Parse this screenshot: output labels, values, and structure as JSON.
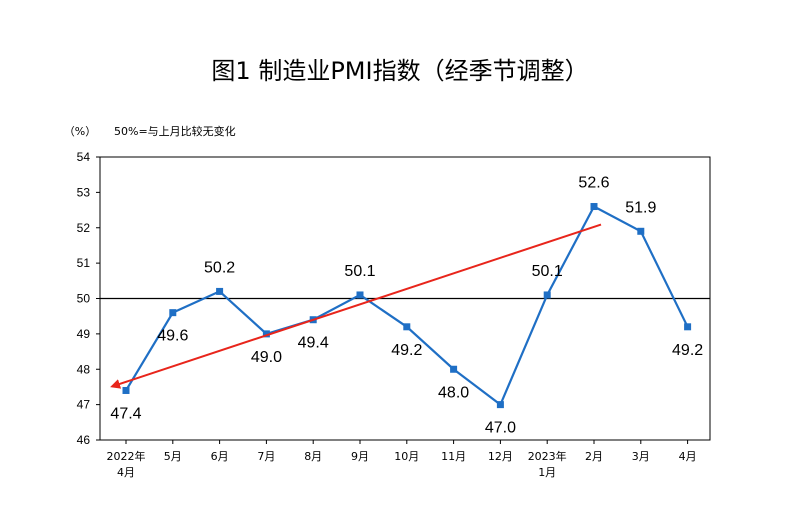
{
  "chart_data": {
    "type": "line",
    "title": "图1  制造业PMI指数（经季节调整）",
    "unit_label": "（%）",
    "note": "50%=与上月比较无变化",
    "categories": [
      [
        "2022年",
        "4月"
      ],
      [
        "5月"
      ],
      [
        "6月"
      ],
      [
        "7月"
      ],
      [
        "8月"
      ],
      [
        "9月"
      ],
      [
        "10月"
      ],
      [
        "11月"
      ],
      [
        "12月"
      ],
      [
        "2023年",
        "1月"
      ],
      [
        "2月"
      ],
      [
        "3月"
      ],
      [
        "4月"
      ]
    ],
    "series": [
      {
        "values": [
          47.4,
          49.6,
          50.2,
          49.0,
          49.4,
          50.1,
          49.2,
          48.0,
          47.0,
          50.1,
          52.6,
          51.9,
          49.2
        ]
      }
    ],
    "data_labels": [
      "47.4",
      "49.6",
      "50.2",
      "49.0",
      "49.4",
      "50.1",
      "49.2",
      "48.0",
      "47.0",
      "50.1",
      "52.6",
      "51.9",
      "49.2"
    ],
    "ylim": [
      46,
      54
    ],
    "yticks": [
      46,
      47,
      48,
      49,
      50,
      51,
      52,
      53,
      54
    ],
    "reference_line": 50,
    "grid": false,
    "annotation_arrow": {
      "from_category": "2月",
      "to_category": "4月",
      "color": "#e8251b"
    },
    "colors": {
      "line": "#1f6fc5",
      "marker": "#1f6fc5",
      "axis": "#000000"
    }
  }
}
